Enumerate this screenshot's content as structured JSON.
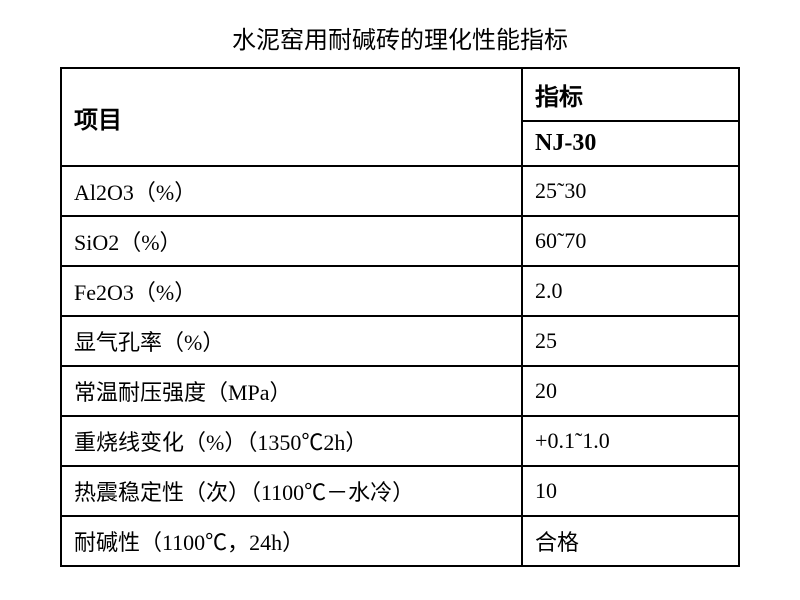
{
  "title": "水泥窑用耐碱砖的理化性能指标",
  "table": {
    "header": {
      "col1": "项目",
      "col2_top": "指标",
      "col2_bottom": "NJ-30"
    },
    "rows": [
      {
        "label": "Al2O3（%）",
        "value": "25˜30"
      },
      {
        "label": "SiO2（%）",
        "value": "60˜70"
      },
      {
        "label": "Fe2O3（%）",
        "value": "2.0"
      },
      {
        "label": "显气孔率（%）",
        "value": "25"
      },
      {
        "label": "常温耐压强度（MPa）",
        "value": "20"
      },
      {
        "label": "重烧线变化（%）（1350℃2h）",
        "value": "+0.1˜1.0"
      },
      {
        "label": "热震稳定性（次）（1100℃－水冷）",
        "value": "10"
      },
      {
        "label": "耐碱性（1100℃，24h）",
        "value": "合格"
      }
    ]
  },
  "styling": {
    "background_color": "#ffffff",
    "text_color": "#000000",
    "border_color": "#000000",
    "title_fontsize": 24,
    "cell_fontsize": 22,
    "header_fontsize": 24,
    "font_family": "SimSun",
    "border_width": 2,
    "col_left_width": "68%",
    "col_right_width": "32%"
  }
}
